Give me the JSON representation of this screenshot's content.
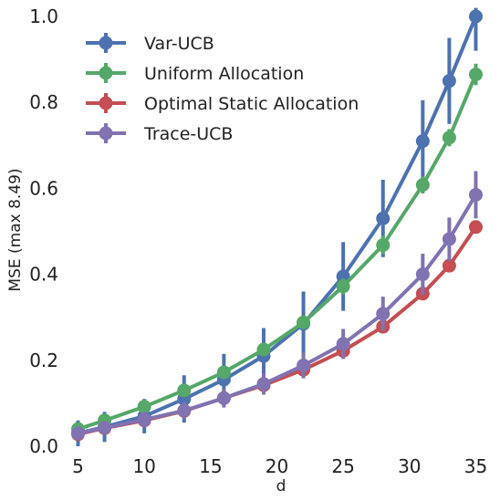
{
  "chart_data": {
    "type": "line",
    "title": "",
    "xlabel": "d",
    "ylabel": "MSE (max 8.49)",
    "xlim": [
      4,
      36
    ],
    "ylim": [
      0,
      1.0
    ],
    "x_ticks": [
      5,
      10,
      15,
      20,
      25,
      30,
      35
    ],
    "x_tick_labels": [
      "5",
      "10",
      "15",
      "20",
      "25",
      "30",
      "35"
    ],
    "y_ticks": [
      0.0,
      0.2,
      0.4,
      0.6,
      0.8,
      1.0
    ],
    "y_tick_labels": [
      "0.0",
      "0.2",
      "0.4",
      "0.6",
      "0.8",
      "1.0"
    ],
    "grid": false,
    "legend_position": "top-left",
    "x": [
      5,
      7,
      10,
      13,
      16,
      19,
      22,
      25,
      28,
      31,
      33,
      35
    ],
    "series": [
      {
        "name": "Var-UCB",
        "color": "#4c72b0",
        "values": [
          0.03,
          0.045,
          0.07,
          0.11,
          0.155,
          0.21,
          0.285,
          0.395,
          0.53,
          0.71,
          0.85,
          1.0
        ],
        "err": [
          0.03,
          0.035,
          0.04,
          0.055,
          0.06,
          0.065,
          0.075,
          0.08,
          0.09,
          0.095,
          0.1,
          0.08
        ]
      },
      {
        "name": "Uniform Allocation",
        "color": "#55a868",
        "values": [
          0.04,
          0.06,
          0.092,
          0.13,
          0.172,
          0.225,
          0.288,
          0.372,
          0.468,
          0.608,
          0.718,
          0.865
        ],
        "err": [
          0.01,
          0.01,
          0.012,
          0.012,
          0.014,
          0.015,
          0.015,
          0.018,
          0.022,
          0.02,
          0.02,
          0.025
        ]
      },
      {
        "name": "Optimal Static Allocation",
        "color": "#c44e52",
        "values": [
          0.028,
          0.042,
          0.06,
          0.082,
          0.112,
          0.142,
          0.178,
          0.222,
          0.278,
          0.355,
          0.42,
          0.51
        ],
        "err": [
          0.005,
          0.005,
          0.006,
          0.006,
          0.007,
          0.008,
          0.009,
          0.01,
          0.01,
          0.012,
          0.012,
          0.015
        ]
      },
      {
        "name": "Trace-UCB",
        "color": "#8172b2",
        "values": [
          0.03,
          0.043,
          0.062,
          0.083,
          0.112,
          0.145,
          0.188,
          0.238,
          0.308,
          0.4,
          0.482,
          0.585
        ],
        "err": [
          0.015,
          0.015,
          0.018,
          0.02,
          0.022,
          0.025,
          0.03,
          0.035,
          0.04,
          0.048,
          0.05,
          0.055
        ]
      }
    ]
  }
}
